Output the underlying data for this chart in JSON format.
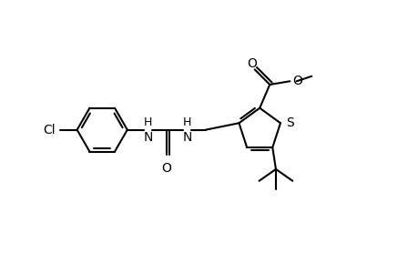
{
  "background_color": "#ffffff",
  "line_color": "#000000",
  "line_width": 1.5,
  "figsize": [
    4.6,
    3.0
  ],
  "dpi": 100,
  "xlim": [
    0,
    10
  ],
  "ylim": [
    -1,
    7
  ]
}
